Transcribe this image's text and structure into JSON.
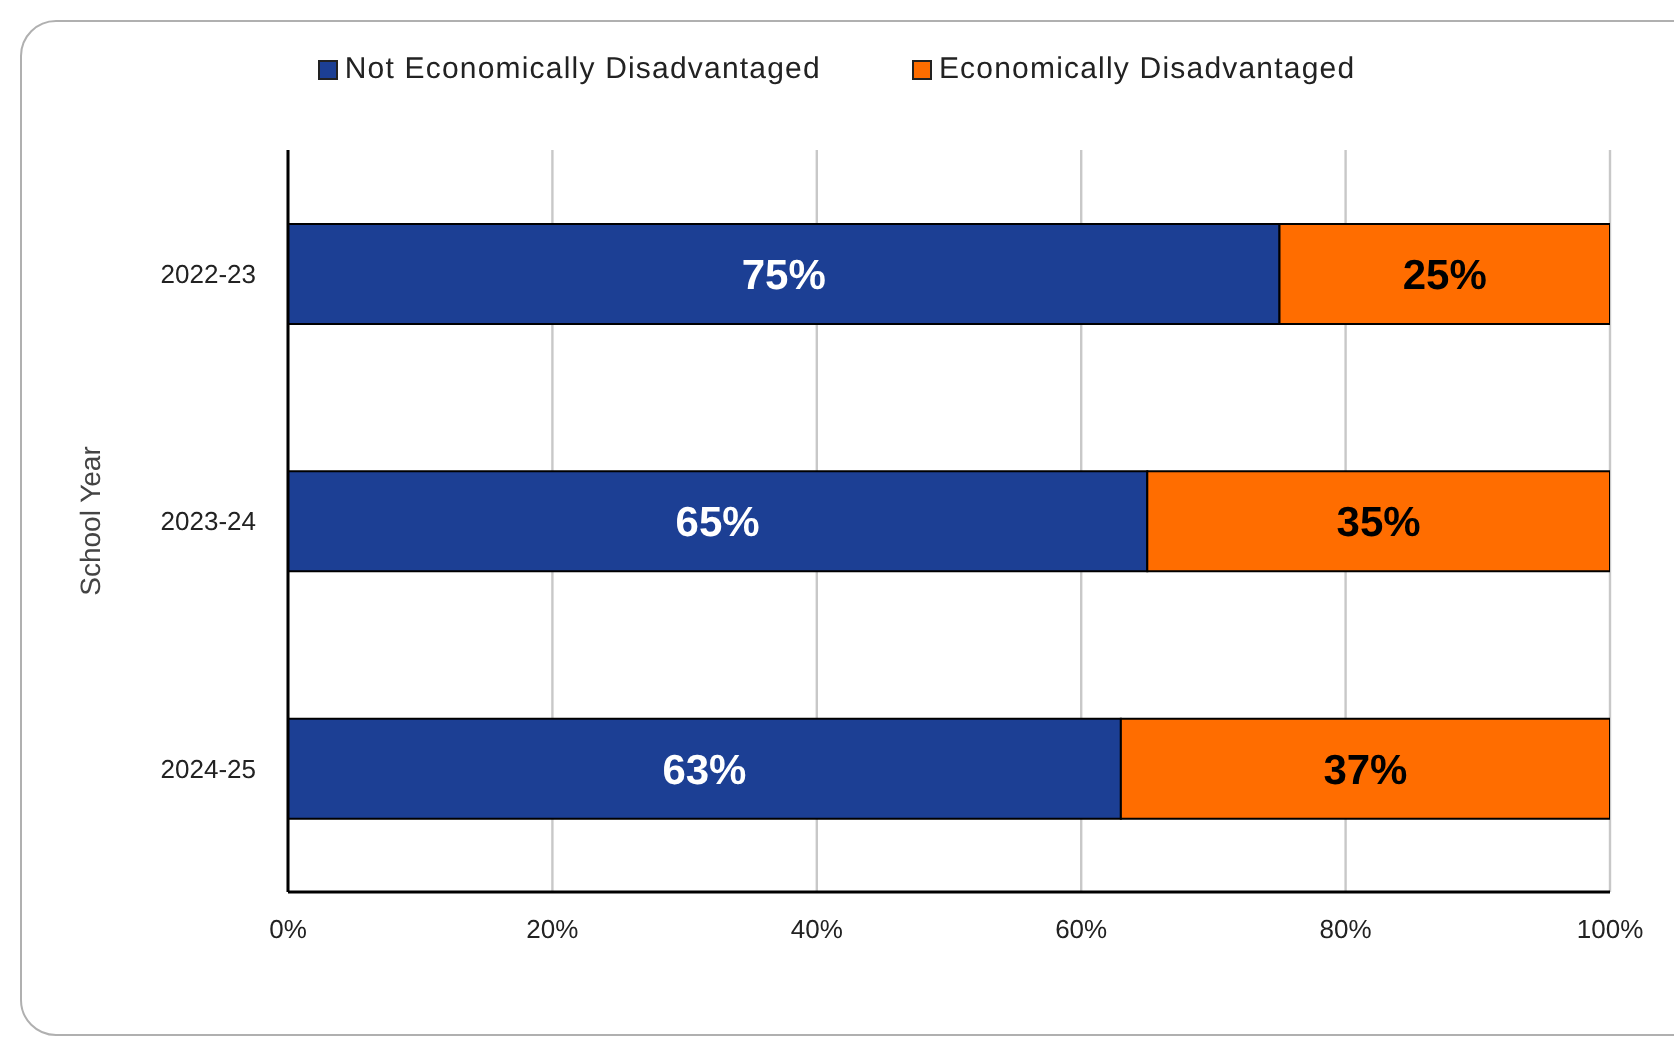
{
  "chart_data": {
    "type": "bar",
    "orientation": "horizontal",
    "stacked": true,
    "ylabel": "School Year",
    "categories": [
      "2022-23",
      "2023-24",
      "2024-25"
    ],
    "series": [
      {
        "name": "Not Economically Disadvantaged",
        "color": "#1c3f94",
        "values": [
          75,
          65,
          63
        ],
        "value_labels": [
          "75%",
          "65%",
          "63%"
        ]
      },
      {
        "name": "Economically Disadvantaged",
        "color": "#ff6d00",
        "values": [
          25,
          35,
          37
        ],
        "value_labels": [
          "25%",
          "35%",
          "37%"
        ]
      }
    ],
    "xlim": [
      0,
      100
    ],
    "xticks": [
      {
        "value": 0,
        "label": "0%"
      },
      {
        "value": 20,
        "label": "20%"
      },
      {
        "value": 40,
        "label": "40%"
      },
      {
        "value": 60,
        "label": "60%"
      },
      {
        "value": 80,
        "label": "80%"
      },
      {
        "value": 100,
        "label": "100%"
      }
    ],
    "grid": "x",
    "legend": "top"
  }
}
